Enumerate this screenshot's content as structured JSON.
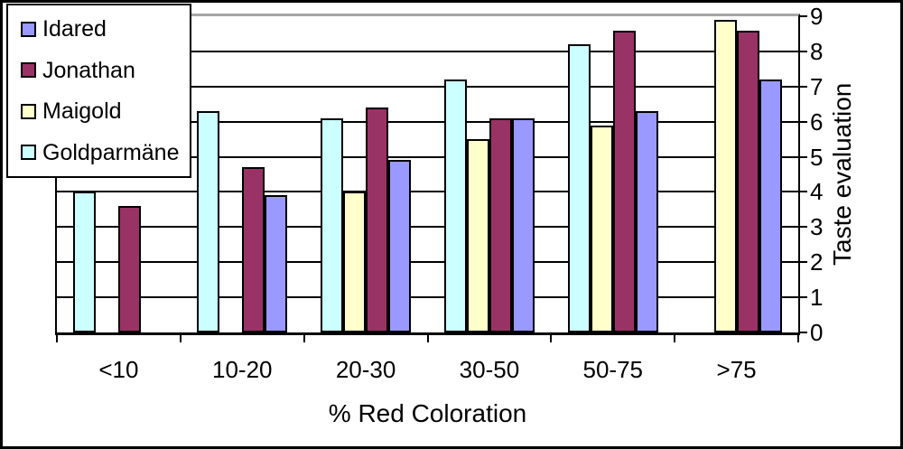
{
  "chart_data": {
    "type": "bar",
    "title": "",
    "xlabel": "% Red Coloration",
    "ylabel": "Taste evaluation",
    "ylim": [
      0,
      9
    ],
    "yticks": [
      0,
      1,
      2,
      3,
      4,
      5,
      6,
      7,
      8,
      9
    ],
    "grid": true,
    "categories": [
      "<10",
      "10-20",
      "20-30",
      "30-50",
      "50-75",
      ">75"
    ],
    "series": [
      {
        "name": "Goldparmäne",
        "color": "#CCFFFF",
        "values": [
          4.0,
          6.3,
          6.1,
          7.2,
          8.2,
          null
        ]
      },
      {
        "name": "Maigold",
        "color": "#FFFFCC",
        "values": [
          null,
          null,
          4.0,
          5.5,
          5.9,
          8.9
        ]
      },
      {
        "name": "Jonathan",
        "color": "#993366",
        "values": [
          3.6,
          4.7,
          6.4,
          6.1,
          8.6,
          8.6
        ]
      },
      {
        "name": "Idared",
        "color": "#9999FF",
        "values": [
          null,
          3.9,
          4.9,
          6.1,
          6.3,
          7.2
        ]
      }
    ],
    "legend": {
      "position": "top-left",
      "items": [
        "Idared",
        "Jonathan",
        "Maigold",
        "Goldparmäne"
      ]
    }
  }
}
